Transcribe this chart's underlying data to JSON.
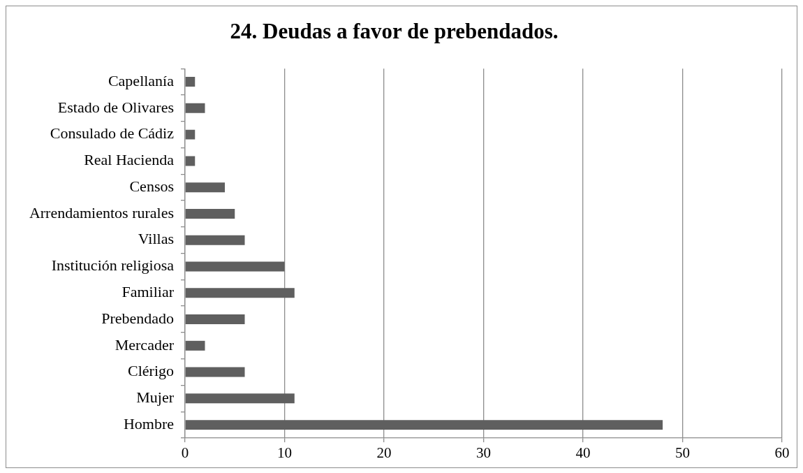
{
  "chart_data": {
    "type": "bar",
    "orientation": "horizontal",
    "title": "24. Deudas a favor de prebendados.",
    "categories": [
      "Capellanía",
      "Estado de Olivares",
      "Consulado de Cádiz",
      "Real Hacienda",
      "Censos",
      "Arrendamientos rurales",
      "Villas",
      "Institución religiosa",
      "Familiar",
      "Prebendado",
      "Mercader",
      "Clérigo",
      "Mujer",
      "Hombre"
    ],
    "values": [
      1,
      2,
      1,
      1,
      4,
      5,
      6,
      10,
      11,
      6,
      2,
      6,
      11,
      48
    ],
    "color": "#5f5f5f",
    "xlim": [
      0,
      60
    ],
    "xticks": [
      0,
      10,
      20,
      30,
      40,
      50,
      60
    ],
    "grid": "x"
  }
}
